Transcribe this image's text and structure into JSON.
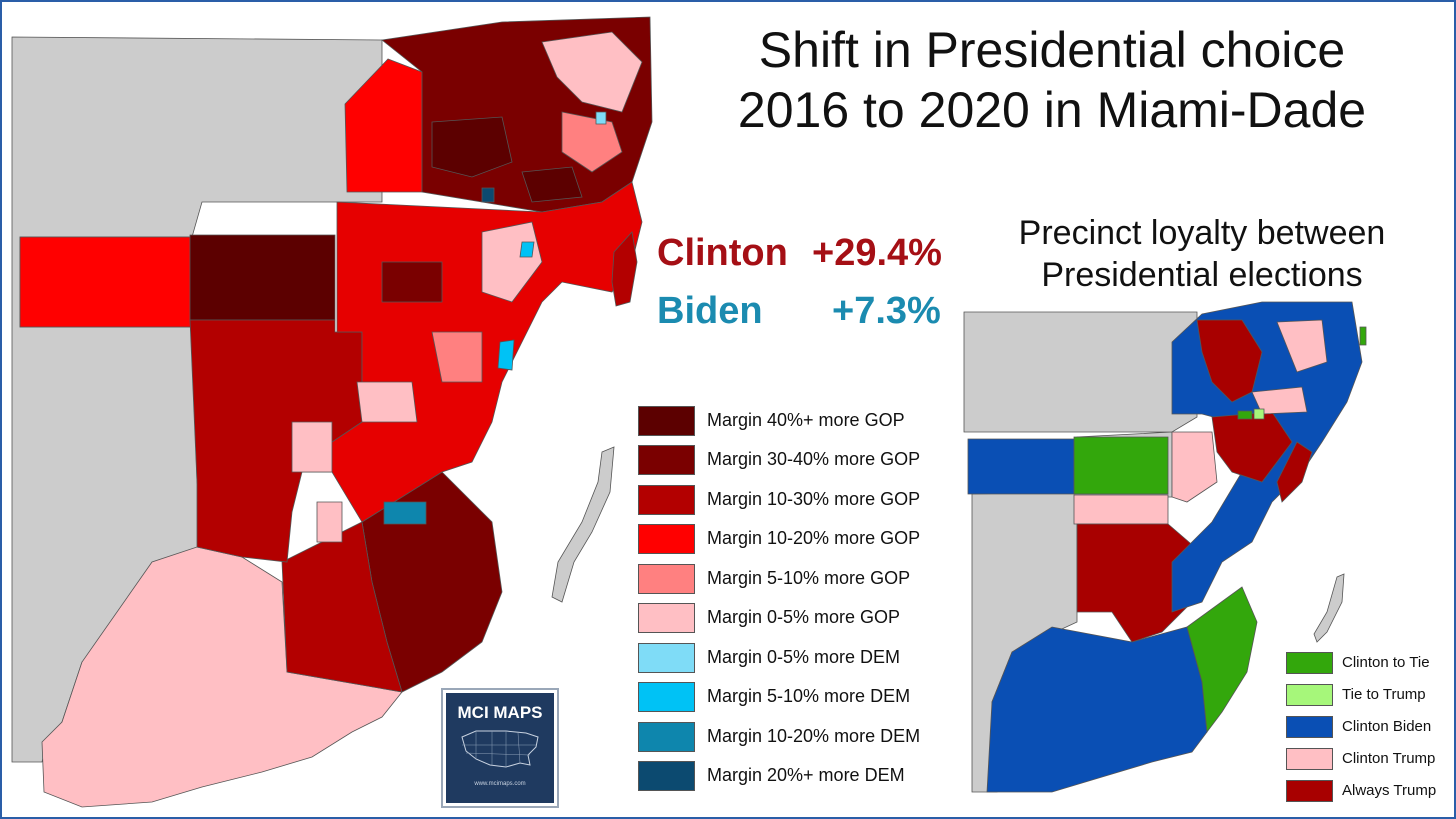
{
  "title_line1": "Shift in Presidential choice",
  "title_line2": "2016 to 2020 in Miami-Dade",
  "clinton_label": "Clinton",
  "clinton_value": "+29.4%",
  "biden_label": "Biden",
  "biden_value": "+7.3%",
  "subtitle_line1": "Precinct loyalty between",
  "subtitle_line2": "Presidential elections",
  "logo_text": "MCI MAPS",
  "logo_sub": "www.mcimaps.com",
  "legend_margin": [
    {
      "label": "Margin 40%+ more GOP",
      "color": "#5c0000"
    },
    {
      "label": "Margin 30-40% more GOP",
      "color": "#7a0000"
    },
    {
      "label": "Margin 10-30% more GOP",
      "color": "#b30000"
    },
    {
      "label": "Margin 10-20% more GOP",
      "color": "#ff0000"
    },
    {
      "label": "Margin 5-10% more GOP",
      "color": "#ff8080"
    },
    {
      "label": "Margin 0-5% more GOP",
      "color": "#ffbfc4"
    },
    {
      "label": "Margin 0-5% more DEM",
      "color": "#7fdcf7"
    },
    {
      "label": "Margin 5-10% more DEM",
      "color": "#00c2f5"
    },
    {
      "label": "Margin 10-20% more DEM",
      "color": "#0e86ad"
    },
    {
      "label": "Margin 20%+ more DEM",
      "color": "#0c4a70"
    }
  ],
  "legend_loyalty": [
    {
      "label": "Clinton to Tie",
      "color": "#33a70c"
    },
    {
      "label": "Tie to Trump",
      "color": "#a6f77a"
    },
    {
      "label": "Clinton Biden",
      "color": "#0a4fb4"
    },
    {
      "label": "Clinton Trump",
      "color": "#ffbfc4"
    },
    {
      "label": "Always Trump",
      "color": "#a80000"
    }
  ],
  "colors": {
    "land_gray": "#cccccc",
    "clinton_red": "#a50f15",
    "biden_teal": "#1b8bb0"
  }
}
